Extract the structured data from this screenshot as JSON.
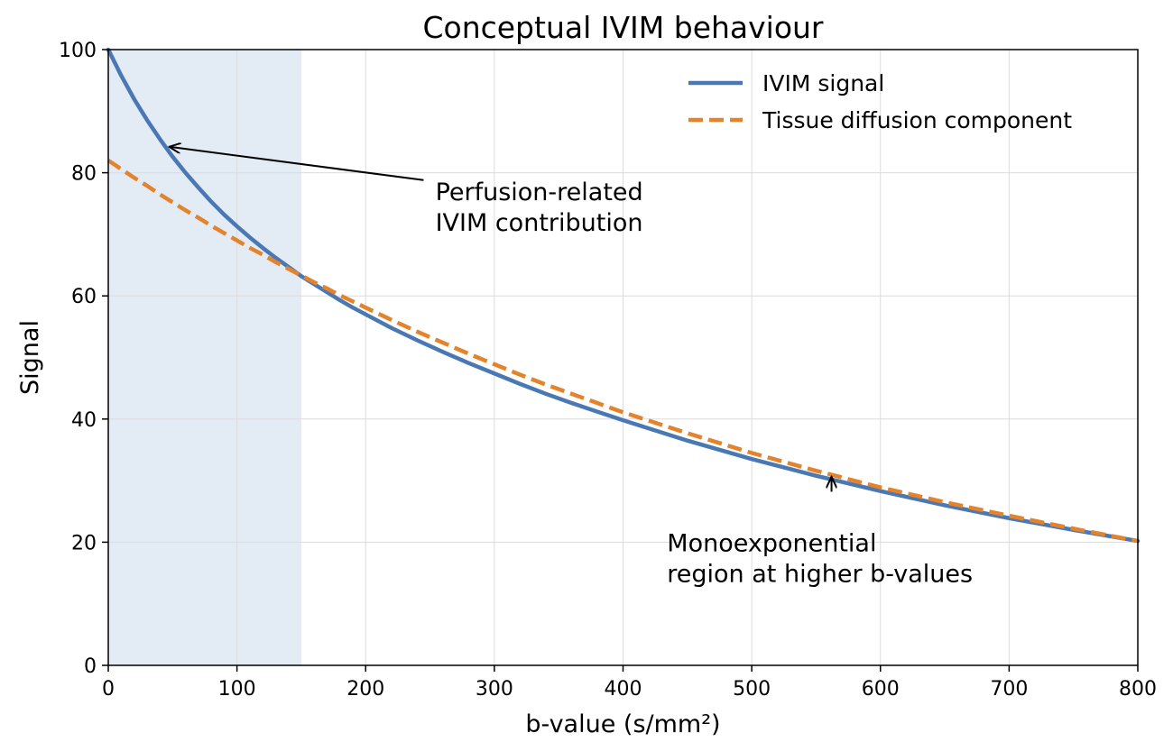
{
  "chart_data": {
    "type": "line",
    "title": "Conceptual IVIM behaviour",
    "xlabel": "b-value (s/mm²)",
    "ylabel": "Signal",
    "xlim": [
      0,
      800
    ],
    "ylim": [
      0,
      100
    ],
    "xticks": [
      0,
      100,
      200,
      300,
      400,
      500,
      600,
      700,
      800
    ],
    "yticks": [
      0,
      20,
      40,
      60,
      80,
      100
    ],
    "grid": true,
    "legend_position": "top-right",
    "shaded_region": {
      "x_start": 0,
      "x_end": 150,
      "color": "#e3ebf4"
    },
    "series": [
      {
        "name": "IVIM signal",
        "color": "#4a78b5",
        "style": "solid",
        "x": [
          0,
          10,
          20,
          30,
          40,
          50,
          60,
          70,
          80,
          90,
          100,
          110,
          120,
          130,
          140,
          150,
          160,
          170,
          180,
          190,
          200,
          220,
          240,
          260,
          280,
          300,
          320,
          340,
          360,
          380,
          400,
          450,
          500,
          550,
          600,
          650,
          700,
          750,
          800
        ],
        "y": [
          100,
          95.8,
          92.0,
          88.6,
          85.5,
          82.6,
          80.0,
          77.6,
          75.3,
          73.2,
          71.3,
          69.5,
          67.8,
          66.2,
          64.7,
          63.2,
          61.9,
          60.6,
          59.3,
          58.1,
          57.0,
          54.8,
          52.8,
          50.9,
          49.1,
          47.4,
          45.7,
          44.1,
          42.6,
          41.2,
          39.8,
          36.5,
          33.5,
          30.8,
          28.3,
          26.0,
          23.9,
          22.0,
          20.2
        ]
      },
      {
        "name": "Tissue diffusion component",
        "color": "#e3832c",
        "style": "dashed",
        "x": [
          0,
          10,
          20,
          30,
          40,
          50,
          60,
          70,
          80,
          90,
          100,
          110,
          120,
          130,
          140,
          150,
          160,
          170,
          180,
          190,
          200,
          220,
          240,
          260,
          280,
          300,
          320,
          340,
          360,
          380,
          400,
          450,
          500,
          550,
          600,
          650,
          700,
          750,
          800
        ],
        "y": [
          82.0,
          80.6,
          79.2,
          77.9,
          76.5,
          75.2,
          73.9,
          72.7,
          71.4,
          70.2,
          69.0,
          67.8,
          66.7,
          65.5,
          64.4,
          63.3,
          62.2,
          61.2,
          60.1,
          59.1,
          58.1,
          56.1,
          54.2,
          52.4,
          50.6,
          48.9,
          47.2,
          45.6,
          44.1,
          42.6,
          41.1,
          37.7,
          34.5,
          31.6,
          28.9,
          26.5,
          24.3,
          22.2,
          20.2
        ]
      }
    ],
    "annotations": [
      {
        "lines": [
          "Perfusion-related",
          "IVIM contribution"
        ],
        "text_at": [
          250,
          77
        ],
        "arrow_to": [
          48,
          84.2
        ],
        "arrow_from": [
          245,
          78.8
        ]
      },
      {
        "lines": [
          "Monoexponential",
          "region at higher b-values"
        ],
        "text_at": [
          430,
          20
        ],
        "arrow_to": [
          562,
          30.5
        ],
        "arrow_from": [
          562,
          28.2
        ]
      }
    ]
  }
}
